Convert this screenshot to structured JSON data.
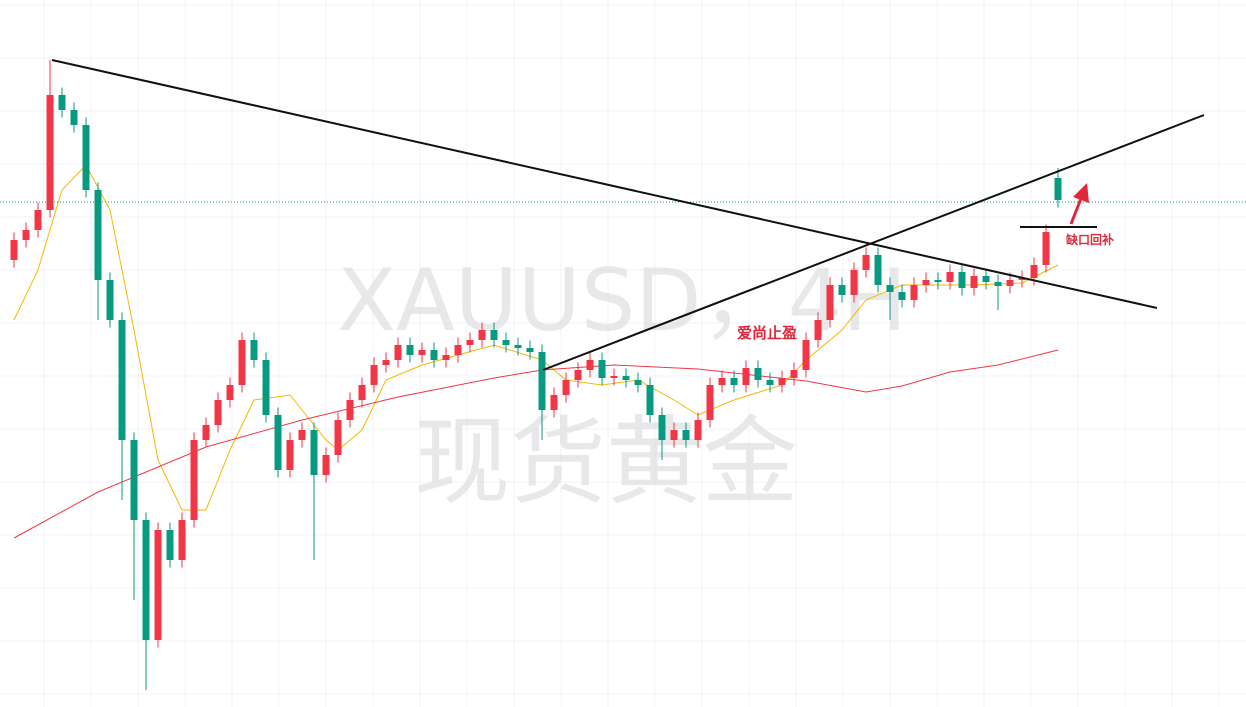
{
  "chart_data": {
    "type": "candlestick",
    "watermark": [
      "XAUUSD，4H",
      "现货黄金"
    ],
    "annotations": [
      "爱尚止盈",
      "缺口回补"
    ],
    "ylim": [
      2580,
      2720
    ],
    "up_color": "#f23645",
    "down_color": "#089981",
    "grid": true,
    "open": [
      2668,
      2672,
      2674,
      2678,
      2701,
      2698,
      2695,
      2682,
      2664,
      2656,
      2632,
      2616,
      2592,
      2614,
      2608,
      2616,
      2632,
      2635,
      2640,
      2643,
      2652,
      2648,
      2637,
      2626,
      2632,
      2634,
      2625,
      2629,
      2636,
      2640,
      2643,
      2647,
      2648,
      2651,
      2649,
      2650,
      2648,
      2649,
      2651,
      2652,
      2654,
      2652,
      2651,
      2650.4,
      2649.6,
      2638,
      2641,
      2644,
      2646,
      2648,
      2644.4,
      2644.8,
      2644,
      2643,
      2637,
      2632,
      2634,
      2632,
      2636,
      2643,
      2644.4,
      2643,
      2646.4,
      2644,
      2643,
      2644.4,
      2646,
      2652,
      2656,
      2663,
      2661,
      2666,
      2669,
      2663,
      2661.6,
      2660,
      2663,
      2664,
      2663.6,
      2665.6,
      2662.4,
      2664.8,
      2663.6,
      2662.8,
      2664,
      2664.4,
      2667,
      2684.4
    ],
    "high": [
      2673.5,
      2675.5,
      2679.5,
      2708,
      2702.5,
      2699.5,
      2696.5,
      2683.5,
      2665.5,
      2657.5,
      2633.5,
      2617.5,
      2615.5,
      2615.5,
      2617.5,
      2633.5,
      2636.5,
      2641.5,
      2644.5,
      2653.5,
      2653.5,
      2649.5,
      2638.5,
      2633.5,
      2635.5,
      2635.5,
      2630.5,
      2637.5,
      2641.5,
      2644.5,
      2648.5,
      2649.5,
      2652.5,
      2652.5,
      2651.5,
      2651.5,
      2650.5,
      2652.5,
      2653.5,
      2655.5,
      2655.5,
      2653.5,
      2652.5,
      2651.9,
      2651.1,
      2642.5,
      2645.5,
      2647.5,
      2649.5,
      2649.5,
      2646.3,
      2646.3,
      2645.5,
      2644.5,
      2638.5,
      2635.5,
      2635.5,
      2637.5,
      2644.5,
      2645.9,
      2645.9,
      2647.9,
      2647.9,
      2645.5,
      2645.9,
      2647.5,
      2653.5,
      2657.5,
      2664.5,
      2664.5,
      2667.5,
      2670.5,
      2670.5,
      2664.5,
      2663.1,
      2664.5,
      2665.5,
      2665.5,
      2667.1,
      2667.1,
      2666.3,
      2666.3,
      2665.1,
      2665.5,
      2665.9,
      2668.5,
      2675.1,
      2686.4
    ],
    "low": [
      2666.5,
      2670.5,
      2672.5,
      2676.5,
      2696.5,
      2693.5,
      2680.5,
      2656,
      2654.5,
      2620,
      2600,
      2582,
      2590.5,
      2606.5,
      2606.5,
      2614.5,
      2630.5,
      2633.5,
      2638.5,
      2641.5,
      2646.5,
      2635.5,
      2624.5,
      2624.5,
      2630.5,
      2608,
      2623.5,
      2627.5,
      2634.5,
      2638.5,
      2641.5,
      2645.5,
      2646.5,
      2647.5,
      2647.5,
      2646.5,
      2646.5,
      2647.5,
      2649.5,
      2650.5,
      2650.5,
      2649.5,
      2648.9,
      2648.1,
      2632,
      2636.5,
      2639.5,
      2642.5,
      2644.5,
      2642.9,
      2642.9,
      2642.5,
      2641.5,
      2635.5,
      2628,
      2630.5,
      2630.5,
      2630.5,
      2634.5,
      2641.5,
      2641.5,
      2641.5,
      2642.5,
      2641.5,
      2641.5,
      2642.9,
      2644.5,
      2650.5,
      2654.5,
      2659.5,
      2659.5,
      2664.5,
      2661.5,
      2656,
      2658.5,
      2658.5,
      2661.5,
      2662.1,
      2662.1,
      2660.9,
      2660.9,
      2662.1,
      2658,
      2661.3,
      2662.5,
      2662.9,
      2665.5,
      2678.5
    ],
    "close": [
      2672,
      2674,
      2678,
      2701,
      2698,
      2695,
      2682,
      2664,
      2656,
      2632,
      2616,
      2592,
      2614,
      2608,
      2616,
      2632,
      2635,
      2640,
      2643,
      2652,
      2648,
      2637,
      2626,
      2632,
      2634,
      2625,
      2629,
      2636,
      2640,
      2643,
      2647,
      2648,
      2651,
      2649,
      2650,
      2648,
      2649,
      2651,
      2652,
      2654,
      2652,
      2651,
      2650.4,
      2649.6,
      2638,
      2641,
      2644,
      2646,
      2648,
      2644.4,
      2644.8,
      2644,
      2643,
      2637,
      2632,
      2634,
      2632,
      2636,
      2643,
      2644.4,
      2643,
      2646.4,
      2644,
      2643,
      2644.4,
      2646,
      2652,
      2656,
      2663,
      2661,
      2666,
      2669,
      2663,
      2661.6,
      2660,
      2663,
      2664,
      2663.6,
      2665.6,
      2662.4,
      2664.8,
      2663.6,
      2662.8,
      2664,
      2664.4,
      2667,
      2673.6,
      2680
    ],
    "moving_averages": [
      {
        "color": "#f5b800",
        "x": [
          0,
          2,
          4,
          6,
          8,
          10,
          12,
          14,
          16,
          18,
          20,
          23,
          24,
          26,
          27,
          29,
          31,
          34,
          37,
          40,
          44,
          46,
          49,
          52,
          55,
          57,
          60,
          64,
          66,
          69,
          71,
          74,
          77,
          80,
          84,
          87
        ],
        "values": [
          2656,
          2666,
          2682,
          2687,
          2678,
          2654,
          2628,
          2618,
          2618,
          2630,
          2640,
          2641,
          2638,
          2632,
          2630,
          2634,
          2644,
          2647,
          2649,
          2651,
          2648,
          2644,
          2643,
          2644,
          2640,
          2637,
          2640,
          2643,
          2648,
          2654,
          2660,
          2663,
          2663,
          2663,
          2663.4,
          2667
        ]
      },
      {
        "color": "#f23645",
        "x": [
          0,
          7,
          16,
          24,
          32,
          40,
          44,
          50,
          57,
          66,
          71,
          74,
          78,
          82,
          87
        ],
        "values": [
          2612.4,
          2621.6,
          2630.6,
          2636,
          2640.6,
          2644.4,
          2646,
          2647,
          2646.2,
          2643.8,
          2641.6,
          2642.8,
          2645.6,
          2647,
          2650
        ]
      }
    ]
  }
}
